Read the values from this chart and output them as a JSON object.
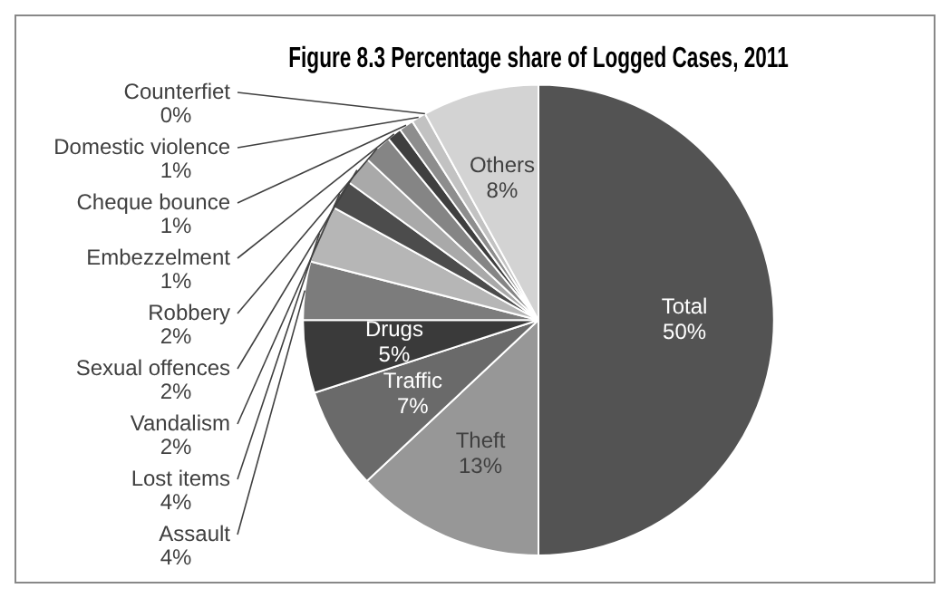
{
  "chart_data": {
    "type": "pie",
    "title": "Figure 8.3 Percentage share of Logged Cases, 2011",
    "categories": [
      "Total",
      "Theft",
      "Traffic",
      "Drugs",
      "Assault",
      "Lost items",
      "Vandalism",
      "Sexual offences",
      "Robbery",
      "Embezzelment",
      "Cheque bounce",
      "Domestic violence",
      "Counterfiet",
      "Others"
    ],
    "values": [
      50,
      13,
      7,
      5,
      4,
      4,
      2,
      2,
      2,
      1,
      1,
      1,
      0,
      8
    ],
    "value_labels": [
      "50%",
      "13%",
      "7%",
      "5%",
      "4%",
      "4%",
      "2%",
      "2%",
      "2%",
      "1%",
      "1%",
      "1%",
      "0%",
      "8%"
    ],
    "colors": [
      "#535353",
      "#979797",
      "#6a6a6a",
      "#3a3a3a",
      "#7c7c7c",
      "#b6b6b6",
      "#4c4c4c",
      "#a9a9a9",
      "#858585",
      "#3f3f3f",
      "#8d8d8d",
      "#c2c2c2",
      "#e0e0e0",
      "#d3d3d3"
    ],
    "legend": false
  }
}
